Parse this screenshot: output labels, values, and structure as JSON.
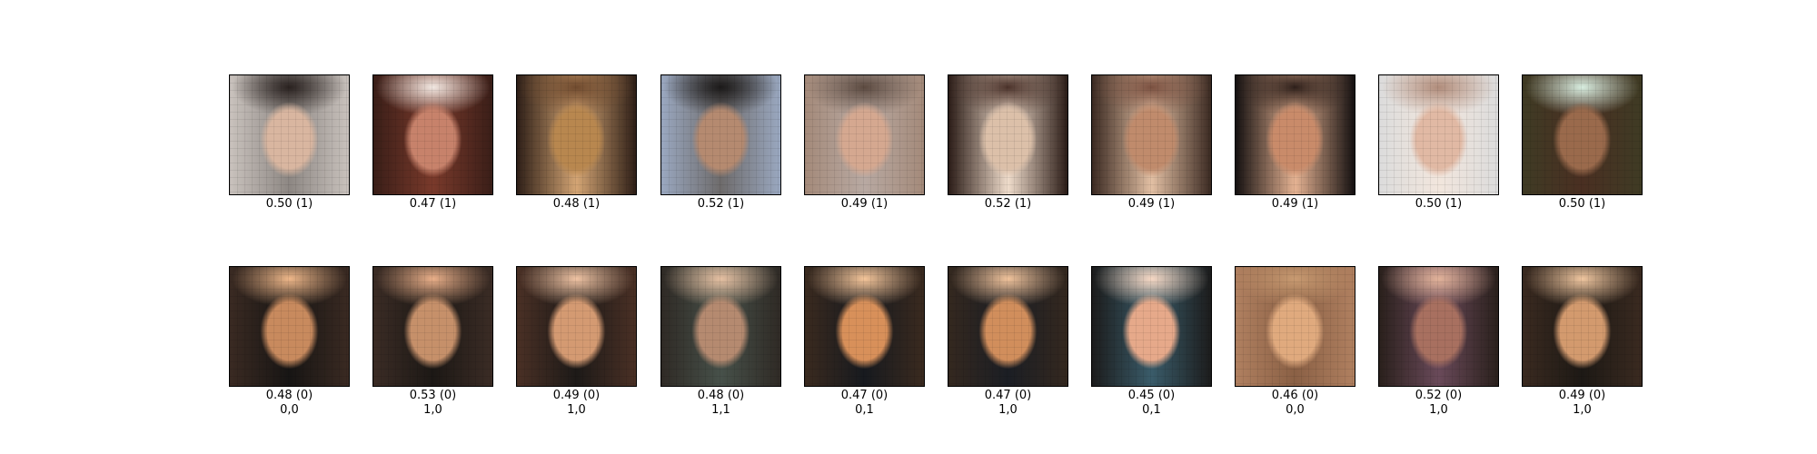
{
  "real_row": [
    {
      "score": "0.50 (1)",
      "palette": [
        "#c9c2bd",
        "#d9b6a0",
        "#2a2220",
        "#8d8783"
      ]
    },
    {
      "score": "0.47 (1)",
      "palette": [
        "#3a1e18",
        "#c7826b",
        "#f1e8e2",
        "#7a3a2b"
      ]
    },
    {
      "score": "0.48 (1)",
      "palette": [
        "#2e1f17",
        "#b8874f",
        "#6f4a2e",
        "#d4a574"
      ]
    },
    {
      "score": "0.52 (1)",
      "palette": [
        "#9aa8c0",
        "#b58a70",
        "#1c1a1a",
        "#6e6b6b"
      ]
    },
    {
      "score": "0.49 (1)",
      "palette": [
        "#a48a7a",
        "#d5a890",
        "#5c4a40",
        "#b8a9a2"
      ]
    },
    {
      "score": "0.52 (1)",
      "palette": [
        "#2b1c17",
        "#dcc0a9",
        "#4a3129",
        "#f0ddcc"
      ]
    },
    {
      "score": "0.49 (1)",
      "palette": [
        "#3b2a22",
        "#c08b6c",
        "#7a5040",
        "#e3c0a4"
      ]
    },
    {
      "score": "0.49 (1)",
      "palette": [
        "#141010",
        "#c98b6a",
        "#2d1f1a",
        "#e6b393"
      ]
    },
    {
      "score": "0.50 (1)",
      "palette": [
        "#dcdcdc",
        "#e1b9a4",
        "#b08c7b",
        "#f2e6dd"
      ]
    },
    {
      "score": "0.50 (1)",
      "palette": [
        "#3f3b24",
        "#9a6a4c",
        "#d8eee0",
        "#4a2f22"
      ]
    }
  ],
  "fake_row": [
    {
      "score": "0.48 (0)",
      "label": "0,0",
      "palette": [
        "#3a2a22",
        "#c88a5e",
        "#f0b88a",
        "#171514"
      ]
    },
    {
      "score": "0.53 (0)",
      "label": "1,0",
      "palette": [
        "#3b2c25",
        "#c6906a",
        "#ebb08a",
        "#1c1815"
      ]
    },
    {
      "score": "0.49 (0)",
      "label": "1,0",
      "palette": [
        "#4a3025",
        "#d49a72",
        "#f1c4a4",
        "#1d1a18"
      ]
    },
    {
      "score": "0.48 (0)",
      "label": "1,1",
      "palette": [
        "#2f2a25",
        "#b58a70",
        "#e6c0a2",
        "#47514a"
      ]
    },
    {
      "score": "0.47 (0)",
      "label": "0,1",
      "palette": [
        "#3a2a1f",
        "#d8905a",
        "#f6c69a",
        "#171a1f"
      ]
    },
    {
      "score": "0.47 (0)",
      "label": "1,0",
      "palette": [
        "#34281f",
        "#d18e5c",
        "#f2c49c",
        "#1b1e24"
      ]
    },
    {
      "score": "0.45 (0)",
      "label": "0,1",
      "palette": [
        "#1c1c1c",
        "#e6a98a",
        "#f7d8c4",
        "#3a5c6a"
      ]
    },
    {
      "score": "0.46 (0)",
      "label": "0,0",
      "palette": [
        "#b08060",
        "#e0aa7e",
        "#c99b72",
        "#8a6045"
      ]
    },
    {
      "score": "0.52 (0)",
      "label": "1,0",
      "palette": [
        "#2a201c",
        "#a87060",
        "#e2b39a",
        "#6a4a5a"
      ]
    },
    {
      "score": "0.49 (0)",
      "label": "1,0",
      "palette": [
        "#3a2a20",
        "#d39a6e",
        "#f1c7a0",
        "#1d1915"
      ]
    }
  ]
}
